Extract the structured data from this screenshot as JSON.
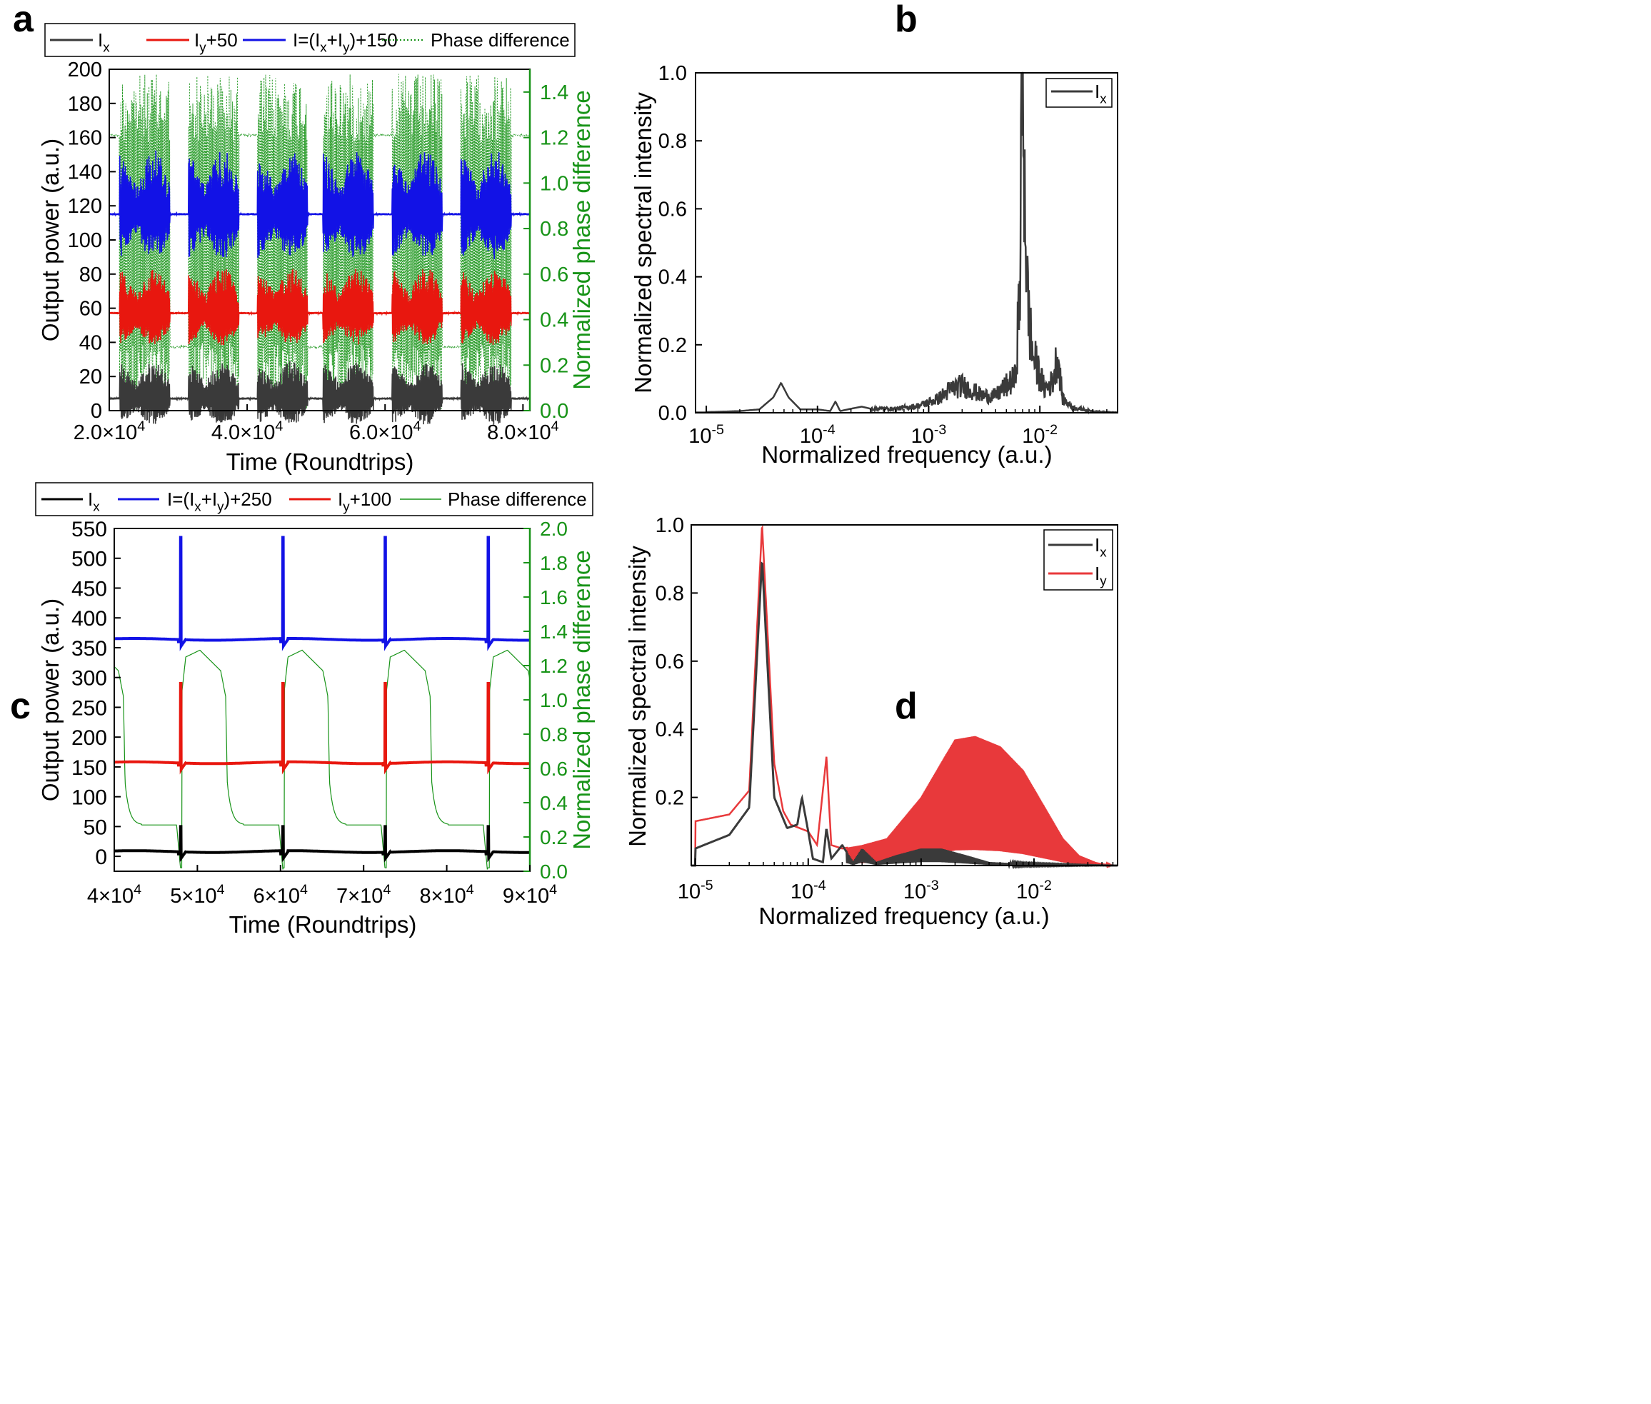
{
  "panels": {
    "a": {
      "letter": "a"
    },
    "b": {
      "letter": "b"
    },
    "c": {
      "letter": "c"
    },
    "d": {
      "letter": "d"
    }
  },
  "colors": {
    "ix": "#3a3a3a",
    "ix_c": "#000000",
    "iy": "#e8170f",
    "iy_d": "#e8393b",
    "itot": "#1212e6",
    "phase": "#179317",
    "phase_axis": "#179317"
  },
  "chart_data": [
    {
      "panel": "a",
      "type": "line",
      "title": "",
      "xlabel": "Time (Roundtrips)",
      "ylabel": "Output power (a.u.)",
      "y2label": "Normalized phase difference",
      "xlim": [
        20000,
        81000
      ],
      "ylim": [
        0,
        200
      ],
      "y2lim": [
        0,
        1.5
      ],
      "x_ticks": [
        {
          "v": 20000,
          "m": "2.0×10",
          "e": "4"
        },
        {
          "v": 40000,
          "m": "4.0×10",
          "e": "4"
        },
        {
          "v": 60000,
          "m": "6.0×10",
          "e": "4"
        },
        {
          "v": 80000,
          "m": "8.0×10",
          "e": "4"
        }
      ],
      "y_ticks": [
        "0",
        "20",
        "40",
        "60",
        "80",
        "100",
        "120",
        "140",
        "160",
        "180",
        "200"
      ],
      "y2_ticks": [
        "0.0",
        "0.2",
        "0.4",
        "0.6",
        "0.8",
        "1.0",
        "1.2",
        "1.4"
      ],
      "legend": {
        "placement": "top",
        "entries": [
          {
            "key": "ix",
            "text": "I",
            "sub": "x",
            "rest": "",
            "style": "solid"
          },
          {
            "key": "iy",
            "text": "I",
            "sub": "y",
            "rest": "+50",
            "style": "solid"
          },
          {
            "key": "itot",
            "text": "I=(I",
            "sub": "x",
            "rest": "+I",
            "sub2": "y",
            "rest2": ")+150",
            "style": "solid"
          },
          {
            "key": "phase",
            "text": "Phase difference",
            "style": "dotted"
          }
        ]
      },
      "burst_starts": [
        21500,
        31500,
        41500,
        51000,
        61000,
        71000
      ],
      "burst_length": 7300,
      "series": [
        {
          "key": "ix",
          "baseline": 7,
          "peak_amplitude": 22,
          "axis": "left"
        },
        {
          "key": "iy",
          "baseline": 57,
          "peak_amplitude": 27,
          "axis": "left"
        },
        {
          "key": "itot",
          "baseline": 115,
          "peak_amplitude": 38,
          "axis": "left"
        },
        {
          "key": "phase",
          "quiet_levels": [
            1.21,
            0.28,
            1.21,
            0.28,
            1.21,
            0.28
          ],
          "oscillation_range": [
            0.0,
            1.48
          ],
          "axis": "right"
        }
      ]
    },
    {
      "panel": "b",
      "type": "line",
      "title": "",
      "xlabel": "Normalized frequency (a.u.)",
      "ylabel": "Normalized spectral intensity",
      "xscale": "log",
      "xlim": [
        8e-06,
        0.05
      ],
      "ylim": [
        0,
        1.0
      ],
      "x_ticks": [
        {
          "v": 1e-05,
          "m": "10",
          "e": "-5"
        },
        {
          "v": 0.0001,
          "m": "10",
          "e": "-4"
        },
        {
          "v": 0.001,
          "m": "10",
          "e": "-3"
        },
        {
          "v": 0.01,
          "m": "10",
          "e": "-2"
        }
      ],
      "y_ticks": [
        "0.0",
        "0.2",
        "0.4",
        "0.6",
        "0.8",
        "1.0"
      ],
      "legend": {
        "placement": "top-right",
        "entries": [
          {
            "key": "ix",
            "text": "I",
            "sub": "x"
          }
        ]
      },
      "series": [
        {
          "key": "ix",
          "points": [
            [
              1e-05,
              0.002
            ],
            [
              2e-05,
              0.005
            ],
            [
              3e-05,
              0.01
            ],
            [
              4e-05,
              0.045
            ],
            [
              4.7e-05,
              0.088
            ],
            [
              5.5e-05,
              0.045
            ],
            [
              7e-05,
              0.01
            ],
            [
              0.0001,
              0.01
            ],
            [
              0.00013,
              0.005
            ],
            [
              0.000145,
              0.033
            ],
            [
              0.00016,
              0.005
            ],
            [
              0.0002,
              0.012
            ],
            [
              0.00025,
              0.018
            ],
            [
              0.0003,
              0.012
            ],
            [
              0.0005,
              0.012
            ],
            [
              0.0008,
              0.02
            ],
            [
              0.0012,
              0.04
            ],
            [
              0.0016,
              0.07
            ],
            [
              0.002,
              0.08
            ],
            [
              0.0025,
              0.065
            ],
            [
              0.003,
              0.05
            ],
            [
              0.004,
              0.05
            ],
            [
              0.005,
              0.08
            ],
            [
              0.006,
              0.1
            ],
            [
              0.0066,
              0.35
            ],
            [
              0.0069,
              1.0
            ],
            [
              0.0072,
              0.8
            ],
            [
              0.0077,
              0.35
            ],
            [
              0.0085,
              0.18
            ],
            [
              0.0095,
              0.13
            ],
            [
              0.011,
              0.07
            ],
            [
              0.013,
              0.09
            ],
            [
              0.0145,
              0.175
            ],
            [
              0.016,
              0.04
            ],
            [
              0.02,
              0.015
            ],
            [
              0.03,
              0.004
            ],
            [
              0.05,
              0.001
            ]
          ]
        }
      ]
    },
    {
      "panel": "c",
      "type": "line",
      "title": "",
      "xlabel": "Time (Roundtrips)",
      "ylabel": "Output power (a.u.)",
      "y2label": "Normalized phase difference",
      "xlim": [
        40000,
        90000
      ],
      "ylim": [
        -25,
        550
      ],
      "y2lim": [
        0,
        2.0
      ],
      "x_ticks": [
        {
          "v": 40000,
          "m": "4×10",
          "e": "4"
        },
        {
          "v": 50000,
          "m": "5×10",
          "e": "4"
        },
        {
          "v": 60000,
          "m": "6×10",
          "e": "4"
        },
        {
          "v": 70000,
          "m": "7×10",
          "e": "4"
        },
        {
          "v": 80000,
          "m": "8×10",
          "e": "4"
        },
        {
          "v": 90000,
          "m": "9×10",
          "e": "4"
        }
      ],
      "y_ticks": [
        "0",
        "50",
        "100",
        "150",
        "200",
        "250",
        "300",
        "350",
        "400",
        "450",
        "500",
        "550"
      ],
      "y2_ticks": [
        "0.0",
        "0.2",
        "0.4",
        "0.6",
        "0.8",
        "1.0",
        "1.2",
        "1.4",
        "1.6",
        "1.8",
        "2.0"
      ],
      "legend": {
        "placement": "top",
        "entries": [
          {
            "key": "ix_c",
            "text": "I",
            "sub": "x",
            "rest": "",
            "style": "solid"
          },
          {
            "key": "itot",
            "text": "I=(I",
            "sub": "x",
            "rest": "+I",
            "sub2": "y",
            "rest2": ")+250",
            "style": "solid"
          },
          {
            "key": "iy",
            "text": "I",
            "sub": "y",
            "rest": "+100",
            "style": "solid"
          },
          {
            "key": "phase",
            "text": "Phase difference",
            "style": "thin"
          }
        ]
      },
      "pulse_times": [
        48000,
        60300,
        72600,
        85000
      ],
      "series": [
        {
          "key": "ix_c",
          "baseline": 8,
          "spike_peak": 50,
          "axis": "left"
        },
        {
          "key": "iy",
          "baseline": 157,
          "spike_peak": 290,
          "axis": "left"
        },
        {
          "key": "itot",
          "baseline": 364,
          "spike_peak": 535,
          "axis": "left"
        },
        {
          "key": "phase",
          "high_level": 1.28,
          "mid_level": 0.52,
          "low_level": 0.27,
          "axis": "right"
        }
      ]
    },
    {
      "panel": "d",
      "type": "line",
      "title": "",
      "xlabel": "Normalized frequency (a.u.)",
      "ylabel": "Normalized spectral intensity",
      "xscale": "log",
      "xlim": [
        9.2e-06,
        0.055
      ],
      "ylim": [
        0,
        1.0
      ],
      "x_ticks": [
        {
          "v": 1e-05,
          "m": "10",
          "e": "-5"
        },
        {
          "v": 0.0001,
          "m": "10",
          "e": "-4"
        },
        {
          "v": 0.001,
          "m": "10",
          "e": "-3"
        },
        {
          "v": 0.01,
          "m": "10",
          "e": "-2"
        }
      ],
      "y_ticks": [
        "0.2",
        "0.4",
        "0.6",
        "0.8",
        "1.0"
      ],
      "legend": {
        "placement": "top-right",
        "entries": [
          {
            "key": "ix",
            "text": "I",
            "sub": "x"
          },
          {
            "key": "iy_d",
            "text": "I",
            "sub": "y"
          }
        ]
      },
      "series": [
        {
          "key": "ix",
          "points": [
            [
              1e-05,
              0.05
            ],
            [
              2e-05,
              0.09
            ],
            [
              3e-05,
              0.17
            ],
            [
              3.9e-05,
              0.9
            ],
            [
              5e-05,
              0.2
            ],
            [
              6.5e-05,
              0.11
            ],
            [
              8e-05,
              0.12
            ],
            [
              8.8e-05,
              0.2
            ],
            [
              0.0001,
              0.1
            ],
            [
              0.00011,
              0.02
            ],
            [
              0.000135,
              0.01
            ],
            [
              0.000145,
              0.11
            ],
            [
              0.00016,
              0.02
            ],
            [
              0.0002,
              0.06
            ],
            [
              0.00025,
              0.01
            ],
            [
              0.0003,
              0.05
            ],
            [
              0.0004,
              0.01
            ],
            [
              0.0006,
              0.03
            ],
            [
              0.001,
              0.05
            ],
            [
              0.0015,
              0.05
            ],
            [
              0.0025,
              0.03
            ],
            [
              0.004,
              0.01
            ],
            [
              0.008,
              0.005
            ],
            [
              0.05,
              0.0
            ]
          ]
        },
        {
          "key": "iy_d",
          "points": [
            [
              1e-05,
              0.13
            ],
            [
              2e-05,
              0.15
            ],
            [
              3e-05,
              0.22
            ],
            [
              3.9e-05,
              1.0
            ],
            [
              5e-05,
              0.3
            ],
            [
              6e-05,
              0.16
            ],
            [
              7e-05,
              0.12
            ],
            [
              0.0001,
              0.1
            ],
            [
              0.00012,
              0.06
            ],
            [
              0.000145,
              0.32
            ],
            [
              0.00016,
              0.06
            ],
            [
              0.0002,
              0.05
            ],
            [
              0.0003,
              0.06
            ],
            [
              0.0005,
              0.08
            ],
            [
              0.001,
              0.2
            ],
            [
              0.0015,
              0.3
            ],
            [
              0.002,
              0.37
            ],
            [
              0.003,
              0.38
            ],
            [
              0.005,
              0.35
            ],
            [
              0.008,
              0.28
            ],
            [
              0.012,
              0.18
            ],
            [
              0.018,
              0.08
            ],
            [
              0.025,
              0.03
            ],
            [
              0.035,
              0.01
            ],
            [
              0.05,
              0.0
            ]
          ]
        }
      ],
      "envelope": {
        "key": "iy_d",
        "x_range": [
          0.00022,
          0.05
        ],
        "x_peak": 0.002
      }
    }
  ]
}
